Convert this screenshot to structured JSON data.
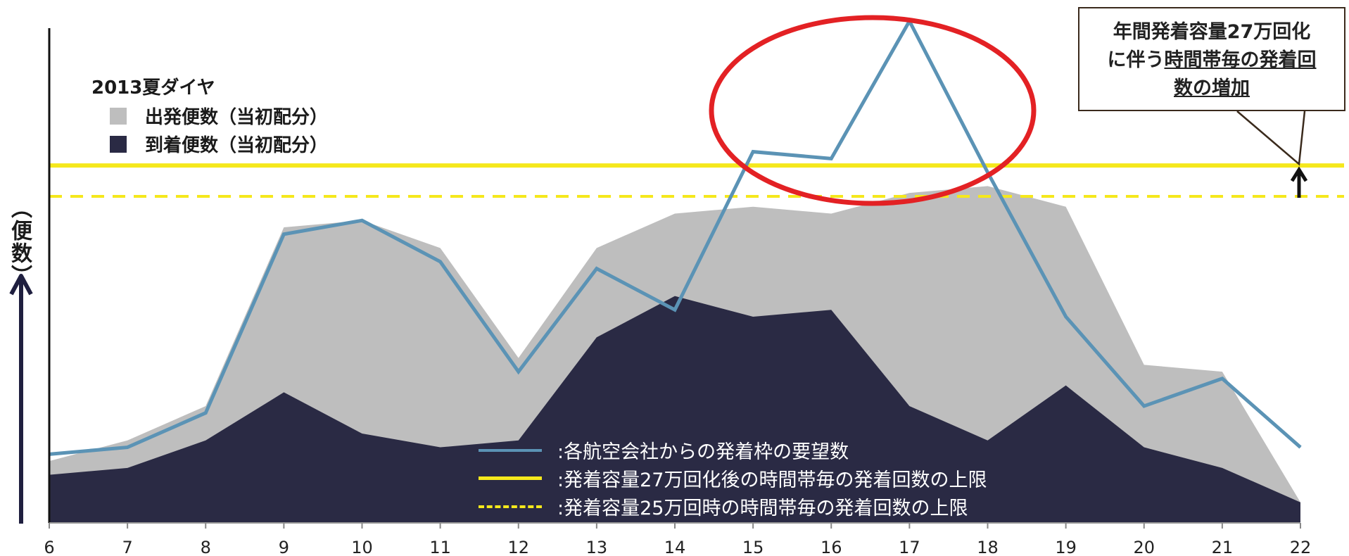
{
  "chart_data": {
    "type": "area",
    "x": [
      6,
      7,
      8,
      9,
      10,
      11,
      12,
      13,
      14,
      15,
      16,
      17,
      18,
      19,
      20,
      21,
      22
    ],
    "series": [
      {
        "name": "出発便数（当初配分）",
        "kind": "area",
        "color": "#bebebe",
        "values": [
          9,
          12,
          17,
          43,
          44,
          40,
          24,
          40,
          45,
          46,
          45,
          48,
          49,
          46,
          23,
          22,
          3
        ]
      },
      {
        "name": "到着便数（当初配分）",
        "kind": "area",
        "color": "#2a2a44",
        "values": [
          7,
          8,
          12,
          19,
          13,
          11,
          12,
          27,
          33,
          30,
          31,
          17,
          12,
          20,
          11,
          8,
          3
        ]
      },
      {
        "name": ":各航空会社からの発着枠の要望数",
        "kind": "line",
        "color": "#5b93b5",
        "values": [
          10,
          11,
          16,
          42,
          44,
          38,
          22,
          37,
          31,
          54,
          53,
          73,
          51,
          30,
          17,
          21,
          11
        ]
      }
    ],
    "limits": [
      {
        "name": ":発着容量27万回化後の時間帯毎の発着回数の上限",
        "value": 52,
        "style": "solid",
        "color": "#f5e81c"
      },
      {
        "name": ":発着容量25万回時の時間帯毎の発着回数の上限",
        "value": 47.5,
        "style": "dashed",
        "color": "#f5e81c"
      }
    ],
    "ylim": [
      0,
      73
    ],
    "xlabel": "",
    "ylabel": "（便数）",
    "legend_title": "2013夏ダイヤ",
    "annotation": {
      "line1": "年間発着容量27万回化",
      "line2_prefix": "に伴う",
      "line2_underlined": "時間帯毎の発着回",
      "line3_underlined": "数の増加"
    },
    "highlight": "17時前後の要望数が上限を超過",
    "colors": {
      "highlight_ellipse": "#e32124",
      "axis": "#111111",
      "arrow": "#1f1f3f"
    }
  }
}
